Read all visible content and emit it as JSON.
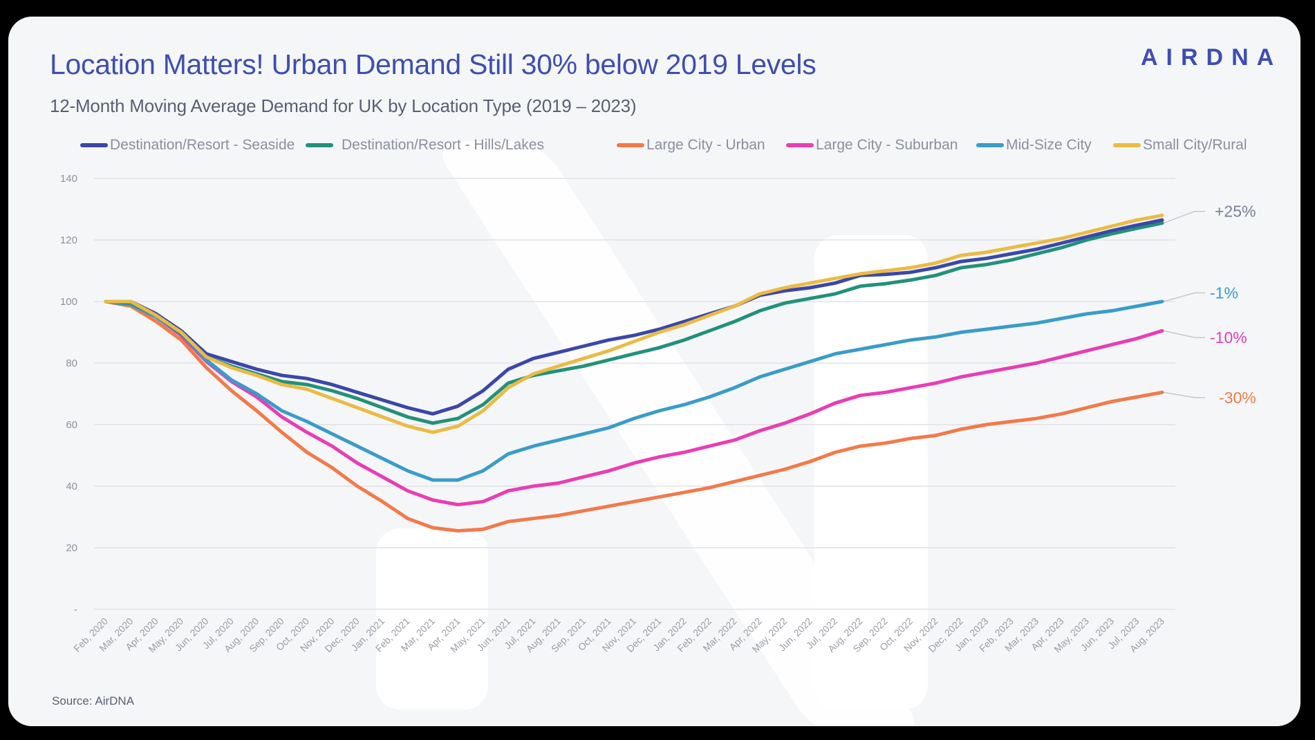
{
  "header": {
    "title": "Location Matters! Urban Demand Still 30% below 2019 Levels",
    "subtitle": "12-Month Moving Average Demand for UK by Location Type (2019 – 2023)",
    "logo_text": "AIRDNA",
    "logo_color": "#3e4eb0"
  },
  "footer": {
    "source": "Source: AirDNA"
  },
  "chart_data": {
    "type": "line",
    "title": "12-Month Moving Average Demand for UK by Location Type (2019 – 2023)",
    "xlabel": "",
    "ylabel": "",
    "ylim": [
      0,
      140
    ],
    "yticks": [
      0,
      20,
      40,
      60,
      80,
      100,
      120,
      140
    ],
    "ytick_labels": [
      "-",
      "20",
      "40",
      "60",
      "80",
      "100",
      "120",
      "140"
    ],
    "grid": true,
    "legend_position": "top",
    "x": [
      "Feb, 2020",
      "Mar, 2020",
      "Apr, 2020",
      "May, 2020",
      "Jun, 2020",
      "Jul, 2020",
      "Aug, 2020",
      "Sep, 2020",
      "Oct, 2020",
      "Nov, 2020",
      "Dec, 2020",
      "Jan, 2021",
      "Feb, 2021",
      "Mar, 2021",
      "Apr, 2021",
      "May, 2021",
      "Jun, 2021",
      "Jul, 2021",
      "Aug, 2021",
      "Sep, 2021",
      "Oct, 2021",
      "Nov, 2021",
      "Dec, 2021",
      "Jan, 2022",
      "Feb, 2022",
      "Mar, 2022",
      "Apr, 2022",
      "May, 2022",
      "Jun, 2022",
      "Jul, 2022",
      "Aug, 2022",
      "Sep, 2022",
      "Oct, 2022",
      "Nov, 2022",
      "Dec, 2022",
      "Jan, 2023",
      "Feb, 2023",
      "Mar, 2023",
      "Apr, 2023",
      "May, 2023",
      "Jun, 2023",
      "Jul, 2023",
      "Aug, 2023"
    ],
    "series": [
      {
        "name": "Destination/Resort - Seaside",
        "legend_label": "Destination/Resort - Seaside",
        "color": "#3b47a8",
        "values": [
          100,
          100,
          96,
          90.5,
          83,
          80.5,
          78,
          76,
          75,
          73,
          70.5,
          68,
          65.5,
          63.5,
          66,
          71,
          78,
          81.5,
          83.5,
          85.5,
          87.5,
          89,
          91,
          93.5,
          96,
          98.5,
          102,
          103.5,
          104.5,
          106,
          108.5,
          108.8,
          109.5,
          111,
          113,
          114,
          115.5,
          117,
          119,
          121,
          123,
          124.8,
          126.5
        ]
      },
      {
        "name": "Destination/Resort - Hills/Lakes",
        "legend_label": "Destination/Resort - Hills/Lakes",
        "color": "#23917a",
        "values": [
          100,
          99.5,
          95.5,
          89.5,
          82,
          79,
          76.5,
          74,
          73,
          71,
          68.5,
          65.5,
          62.5,
          60.5,
          62,
          66.5,
          73.5,
          76,
          77.5,
          79,
          81,
          83,
          85,
          87.5,
          90.5,
          93.5,
          97,
          99.5,
          101,
          102.5,
          105,
          105.8,
          107,
          108.5,
          111,
          112,
          113.5,
          115.5,
          117.5,
          120,
          122,
          123.8,
          125.5
        ]
      },
      {
        "name": "Large City - Urban",
        "legend_label": "Large City - Urban",
        "color": "#f27a4a",
        "values": [
          100,
          98.5,
          93.5,
          87.5,
          78.5,
          71,
          64.5,
          57.5,
          51,
          46,
          40,
          35,
          29.5,
          26.5,
          25.5,
          26,
          28.5,
          29.5,
          30.5,
          32,
          33.5,
          35,
          36.5,
          38,
          39.5,
          41.5,
          43.5,
          45.5,
          48,
          51,
          53,
          54,
          55.5,
          56.5,
          58.5,
          60,
          61,
          62,
          63.5,
          65.5,
          67.5,
          69,
          70.5
        ]
      },
      {
        "name": "Large City - Suburban",
        "legend_label": "Large City - Suburban",
        "color": "#e83eb4",
        "values": [
          100,
          99,
          95,
          89,
          80.5,
          74,
          69,
          62.5,
          57.5,
          53,
          47.5,
          43,
          38.5,
          35.5,
          34,
          35,
          38.5,
          40,
          41,
          43,
          45,
          47.5,
          49.5,
          51,
          53,
          55,
          58,
          60.5,
          63.5,
          67,
          69.5,
          70.5,
          72,
          73.5,
          75.5,
          77,
          78.5,
          80,
          82,
          84,
          86,
          88,
          90.5
        ]
      },
      {
        "name": "Mid-Size City",
        "legend_label": "Mid-Size City",
        "color": "#3a9cc9",
        "values": [
          100,
          99,
          95,
          89.5,
          81,
          74.5,
          70,
          64.5,
          61,
          57,
          53,
          49,
          45,
          42,
          42,
          45,
          50.5,
          53,
          55,
          57,
          59,
          62,
          64.5,
          66.5,
          69,
          72,
          75.5,
          78,
          80.5,
          83,
          84.5,
          86,
          87.5,
          88.5,
          90,
          91,
          92,
          93,
          94.5,
          96,
          97,
          98.5,
          100
        ]
      },
      {
        "name": "Small City/Rural",
        "legend_label": "Small City/Rural",
        "color": "#eabb45",
        "values": [
          100,
          100,
          95.5,
          90,
          82,
          78.5,
          76,
          73,
          71.5,
          68.5,
          65.5,
          62.5,
          59.5,
          57.5,
          59.5,
          64.5,
          72,
          76.5,
          79,
          81.5,
          84,
          87,
          90,
          92.5,
          95.5,
          98.5,
          102.5,
          104.5,
          106,
          107.5,
          109,
          110,
          111,
          112.5,
          115,
          116,
          117.5,
          119,
          120.5,
          122.5,
          124.5,
          126.5,
          128
        ]
      }
    ],
    "annotations": [
      {
        "text": "+25%",
        "color": "#7b7f96",
        "anchor_series": "Destination/Resort - Hills/Lakes",
        "label_value": 127.5
      },
      {
        "text": "-1%",
        "color": "#3a9cc9",
        "anchor_series": "Mid-Size City",
        "label_value": 101
      },
      {
        "text": "-10%",
        "color": "#e83eb4",
        "anchor_series": "Large City - Suburban",
        "label_value": 86.5
      },
      {
        "text": "-30%",
        "color": "#f27a4a",
        "anchor_series": "Large City - Urban",
        "label_value": 67
      }
    ]
  }
}
